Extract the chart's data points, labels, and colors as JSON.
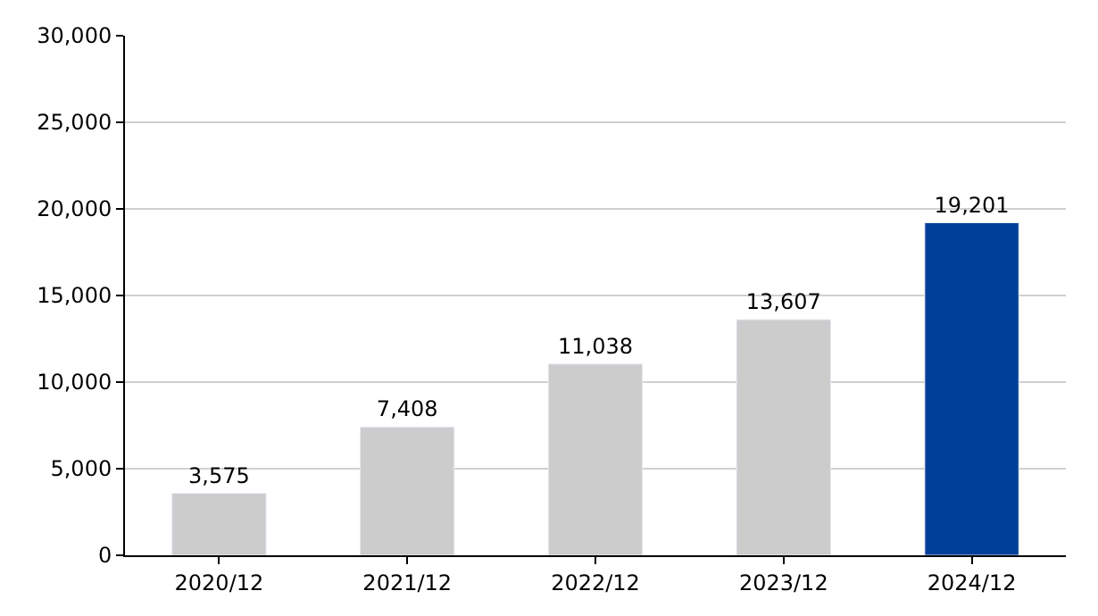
{
  "chart_data": {
    "type": "bar",
    "categories": [
      "2020/12",
      "2021/12",
      "2022/12",
      "2023/12",
      "2024/12"
    ],
    "values": [
      3575,
      7408,
      11038,
      13607,
      19201
    ],
    "colors": [
      "#cccccc",
      "#cccccc",
      "#cccccc",
      "#cccccc",
      "#003f98"
    ],
    "ylim": [
      0,
      30000
    ],
    "yticks": [
      {
        "value": 0,
        "label": "0"
      },
      {
        "value": 5000,
        "label": "5,000"
      },
      {
        "value": 10000,
        "label": "10,000"
      },
      {
        "value": 15000,
        "label": "15,000"
      },
      {
        "value": 20000,
        "label": "20,000"
      },
      {
        "value": 25000,
        "label": "25,000"
      },
      {
        "value": 30000,
        "label": "30,000"
      }
    ],
    "value_labels": [
      "3,575",
      "7,408",
      "11,038",
      "13,607",
      "19,201"
    ],
    "grid": "y",
    "legend": false
  }
}
